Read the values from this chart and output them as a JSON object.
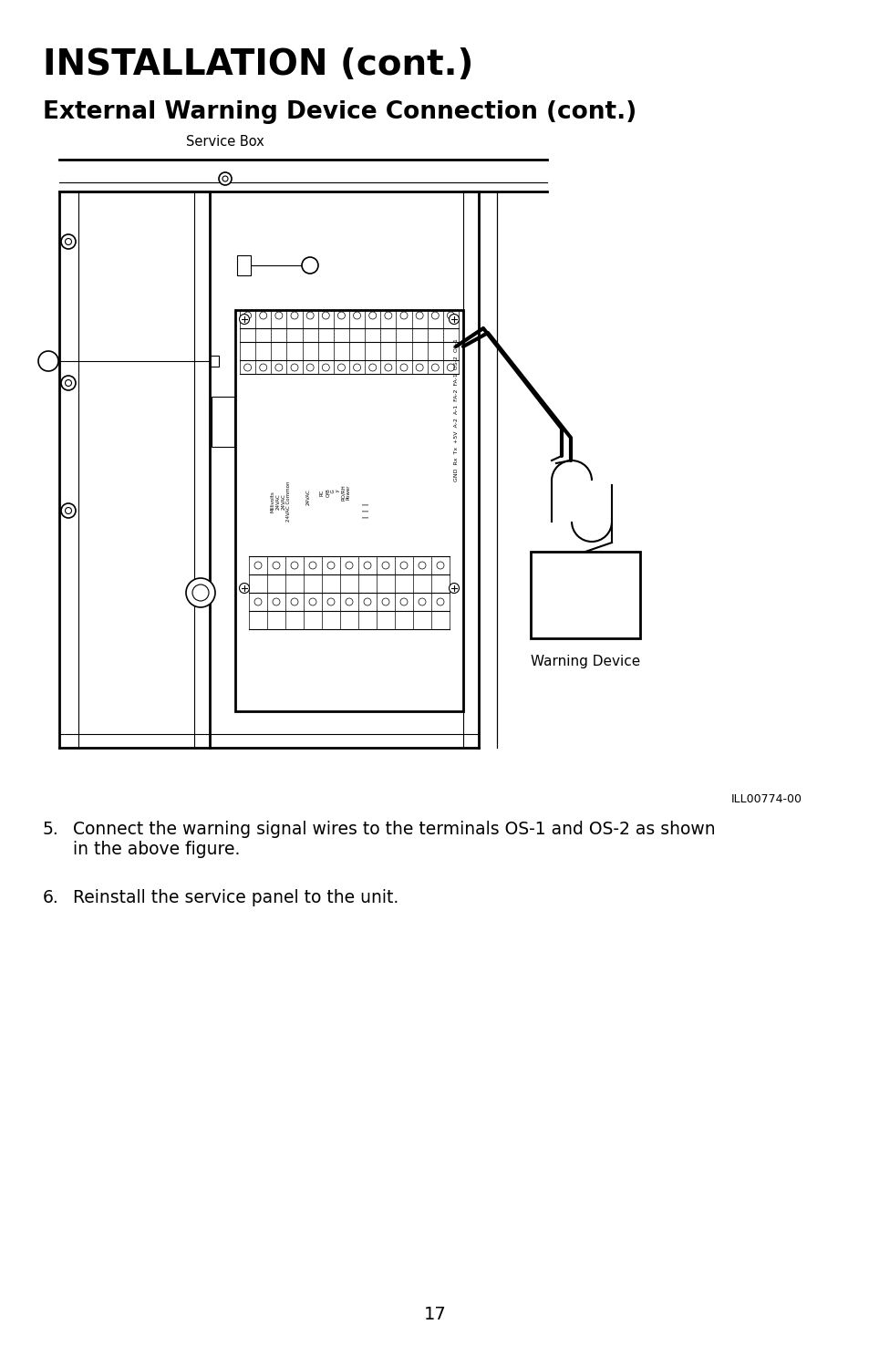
{
  "title": "INSTALLATION (cont.)",
  "subtitle": "External Warning Device Connection (cont.)",
  "background_color": "#ffffff",
  "text_color": "#000000",
  "page_number": "17",
  "illustration_label": "ILL00774-00",
  "service_box_label": "Service Box",
  "warning_device_label": "Warning Device",
  "step5": "Connect the warning signal wires to the terminals OS-1 and OS-2 as shown\nin the above figure.",
  "step6": "Reinstall the service panel to the unit.",
  "title_fontsize": 28,
  "subtitle_fontsize": 19,
  "body_fontsize": 13.5
}
